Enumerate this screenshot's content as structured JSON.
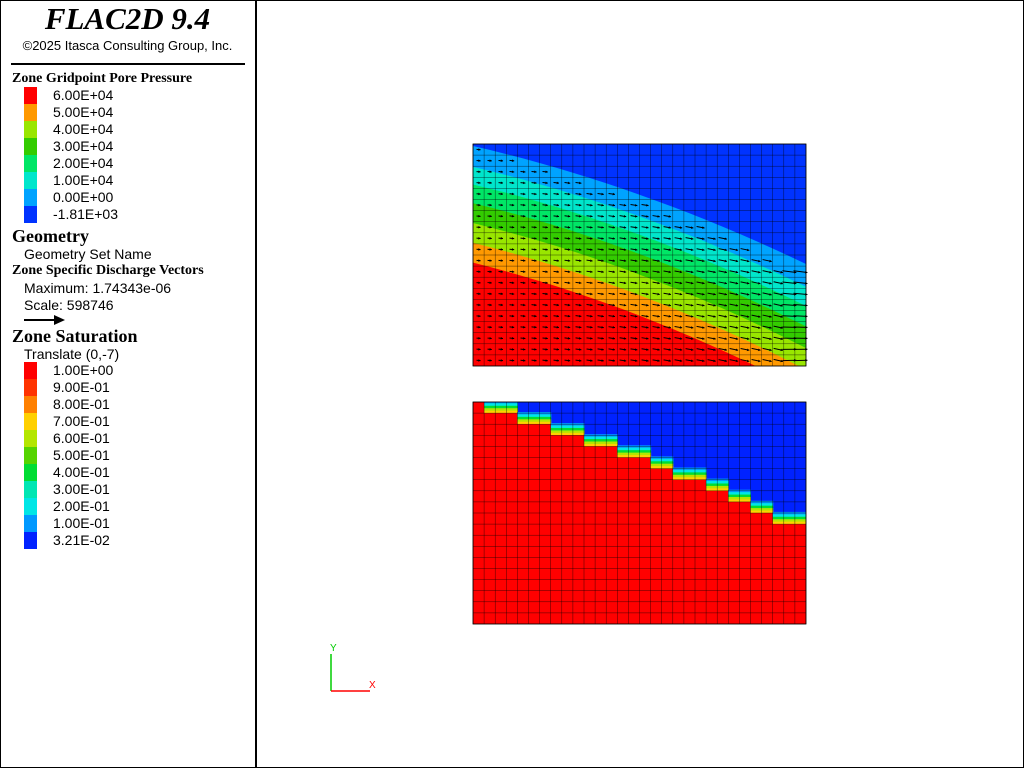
{
  "app": {
    "title": "FLAC2D 9.4",
    "copyright": "©2025 Itasca Consulting Group, Inc."
  },
  "legend": {
    "pore_pressure": {
      "title": "Zone Gridpoint Pore Pressure",
      "entries": [
        {
          "label": "6.00E+04",
          "color": "#ff0000"
        },
        {
          "label": "5.00E+04",
          "color": "#ff9900"
        },
        {
          "label": "4.00E+04",
          "color": "#99e600"
        },
        {
          "label": "3.00E+04",
          "color": "#33cc00"
        },
        {
          "label": "2.00E+04",
          "color": "#00e666"
        },
        {
          "label": "1.00E+04",
          "color": "#00e6cc"
        },
        {
          "label": "0.00E+00",
          "color": "#00a3ff"
        },
        {
          "label": "-1.81E+03",
          "color": "#0033ff"
        }
      ]
    },
    "geometry": {
      "title": "Geometry",
      "item": "Geometry Set Name"
    },
    "discharge": {
      "title": "Zone Specific Discharge Vectors",
      "maximum": "Maximum: 1.74343e-06",
      "scale": "Scale: 598746"
    },
    "saturation": {
      "title": "Zone Saturation",
      "translate": "Translate (0,-7)",
      "entries": [
        {
          "label": "1.00E+00",
          "color": "#ff0000"
        },
        {
          "label": "9.00E-01",
          "color": "#ff3300"
        },
        {
          "label": "8.00E-01",
          "color": "#ff8000"
        },
        {
          "label": "7.00E-01",
          "color": "#ffd000"
        },
        {
          "label": "6.00E-01",
          "color": "#b3e600"
        },
        {
          "label": "5.00E-01",
          "color": "#55d400"
        },
        {
          "label": "4.00E-01",
          "color": "#00dd33"
        },
        {
          "label": "3.00E-01",
          "color": "#00e6b3"
        },
        {
          "label": "2.00E-01",
          "color": "#00e6e6"
        },
        {
          "label": "1.00E-01",
          "color": "#0099ff"
        },
        {
          "label": "3.21E-02",
          "color": "#0022ff"
        }
      ]
    }
  },
  "axes": {
    "x_label": "X",
    "y_label": "Y",
    "x_color": "#ff0000",
    "y_color": "#00cc00"
  }
}
